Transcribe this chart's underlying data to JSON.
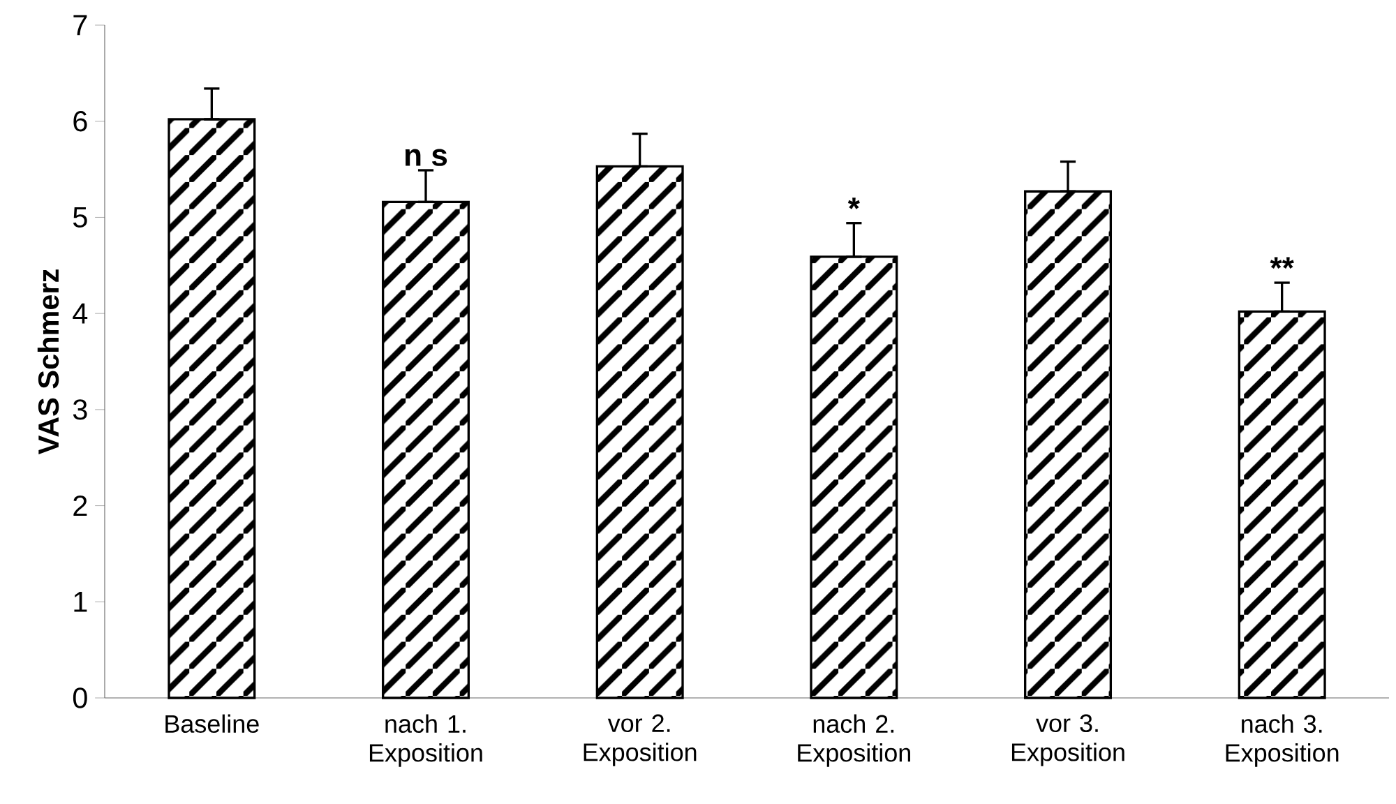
{
  "chart_data": {
    "type": "bar",
    "ylabel": "VAS Schmerz",
    "categories": [
      "Baseline",
      "nach 1. Exposition",
      "vor 2. Exposition",
      "nach 2. Exposition",
      "vor 3. Exposition",
      "nach 3. Exposition"
    ],
    "values": [
      6.02,
      5.16,
      5.53,
      4.59,
      5.27,
      4.02
    ],
    "errors": [
      [
        6.02,
        6.34
      ],
      [
        5.16,
        5.49
      ],
      [
        5.53,
        5.87
      ],
      [
        4.59,
        4.94
      ],
      [
        5.27,
        5.58
      ],
      [
        4.02,
        4.32
      ]
    ],
    "color": "#000000",
    "ylim": [
      0,
      7
    ],
    "yticks": [
      0,
      1,
      2,
      3,
      4,
      5,
      6,
      7
    ],
    "annotations": [
      {
        "text": "n s",
        "x": "nach 1. Exposition",
        "y": 5.49
      },
      {
        "text": "*",
        "x": "nach 2. Exposition",
        "y": 4.94
      },
      {
        "text": "**",
        "x": "nach 3. Exposition",
        "y": 4.32
      }
    ]
  }
}
